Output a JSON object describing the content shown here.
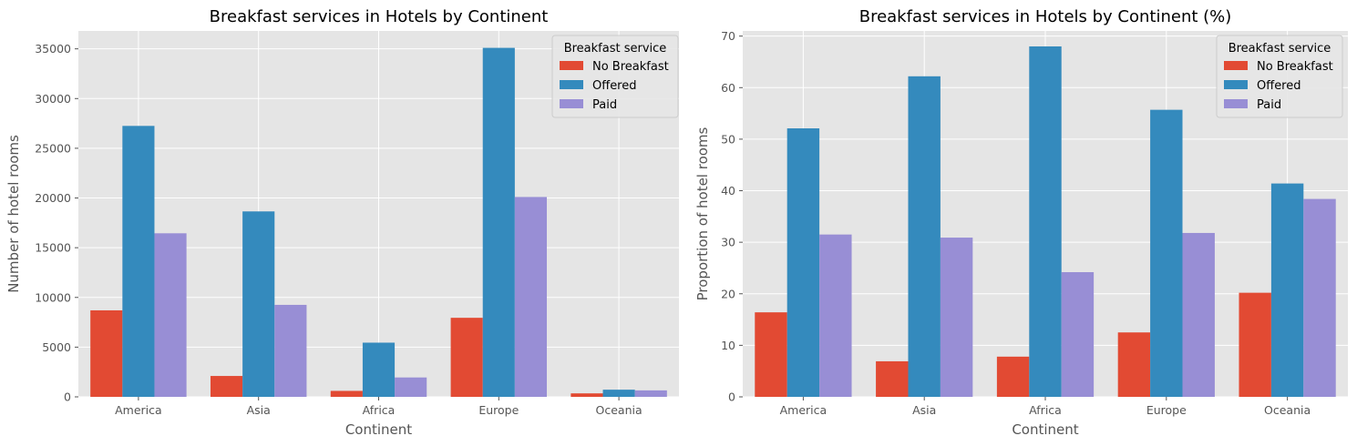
{
  "chart_data": [
    {
      "type": "bar",
      "title": "Breakfast services in Hotels by Continent",
      "xlabel": "Continent",
      "ylabel": "Number of hotel rooms",
      "categories": [
        "America",
        "Asia",
        "Africa",
        "Europe",
        "Oceania"
      ],
      "ylim": [
        0,
        36800
      ],
      "yticks": [
        0,
        5000,
        10000,
        15000,
        20000,
        25000,
        30000,
        35000
      ],
      "grid": true,
      "legend": {
        "title": "Breakfast service",
        "placement": "top-right"
      },
      "series": [
        {
          "name": "No Breakfast",
          "color": "#E24A33",
          "values": [
            8700,
            2100,
            600,
            7950,
            350
          ]
        },
        {
          "name": "Offered",
          "color": "#348ABD",
          "values": [
            27250,
            18650,
            5450,
            35100,
            720
          ]
        },
        {
          "name": "Paid",
          "color": "#988ED5",
          "values": [
            16450,
            9250,
            1950,
            20100,
            650
          ]
        }
      ]
    },
    {
      "type": "bar",
      "title": "Breakfast services in Hotels by Continent (%)",
      "xlabel": "Continent",
      "ylabel": "Proportion of hotel rooms",
      "categories": [
        "America",
        "Asia",
        "Africa",
        "Europe",
        "Oceania"
      ],
      "ylim": [
        0,
        71
      ],
      "yticks": [
        0,
        10,
        20,
        30,
        40,
        50,
        60,
        70
      ],
      "grid": true,
      "legend": {
        "title": "Breakfast service",
        "placement": "top-right"
      },
      "series": [
        {
          "name": "No Breakfast",
          "color": "#E24A33",
          "values": [
            16.4,
            6.9,
            7.8,
            12.5,
            20.2
          ]
        },
        {
          "name": "Offered",
          "color": "#348ABD",
          "values": [
            52.1,
            62.2,
            68.0,
            55.7,
            41.4
          ]
        },
        {
          "name": "Paid",
          "color": "#988ED5",
          "values": [
            31.5,
            30.9,
            24.2,
            31.8,
            38.4
          ]
        }
      ]
    }
  ]
}
